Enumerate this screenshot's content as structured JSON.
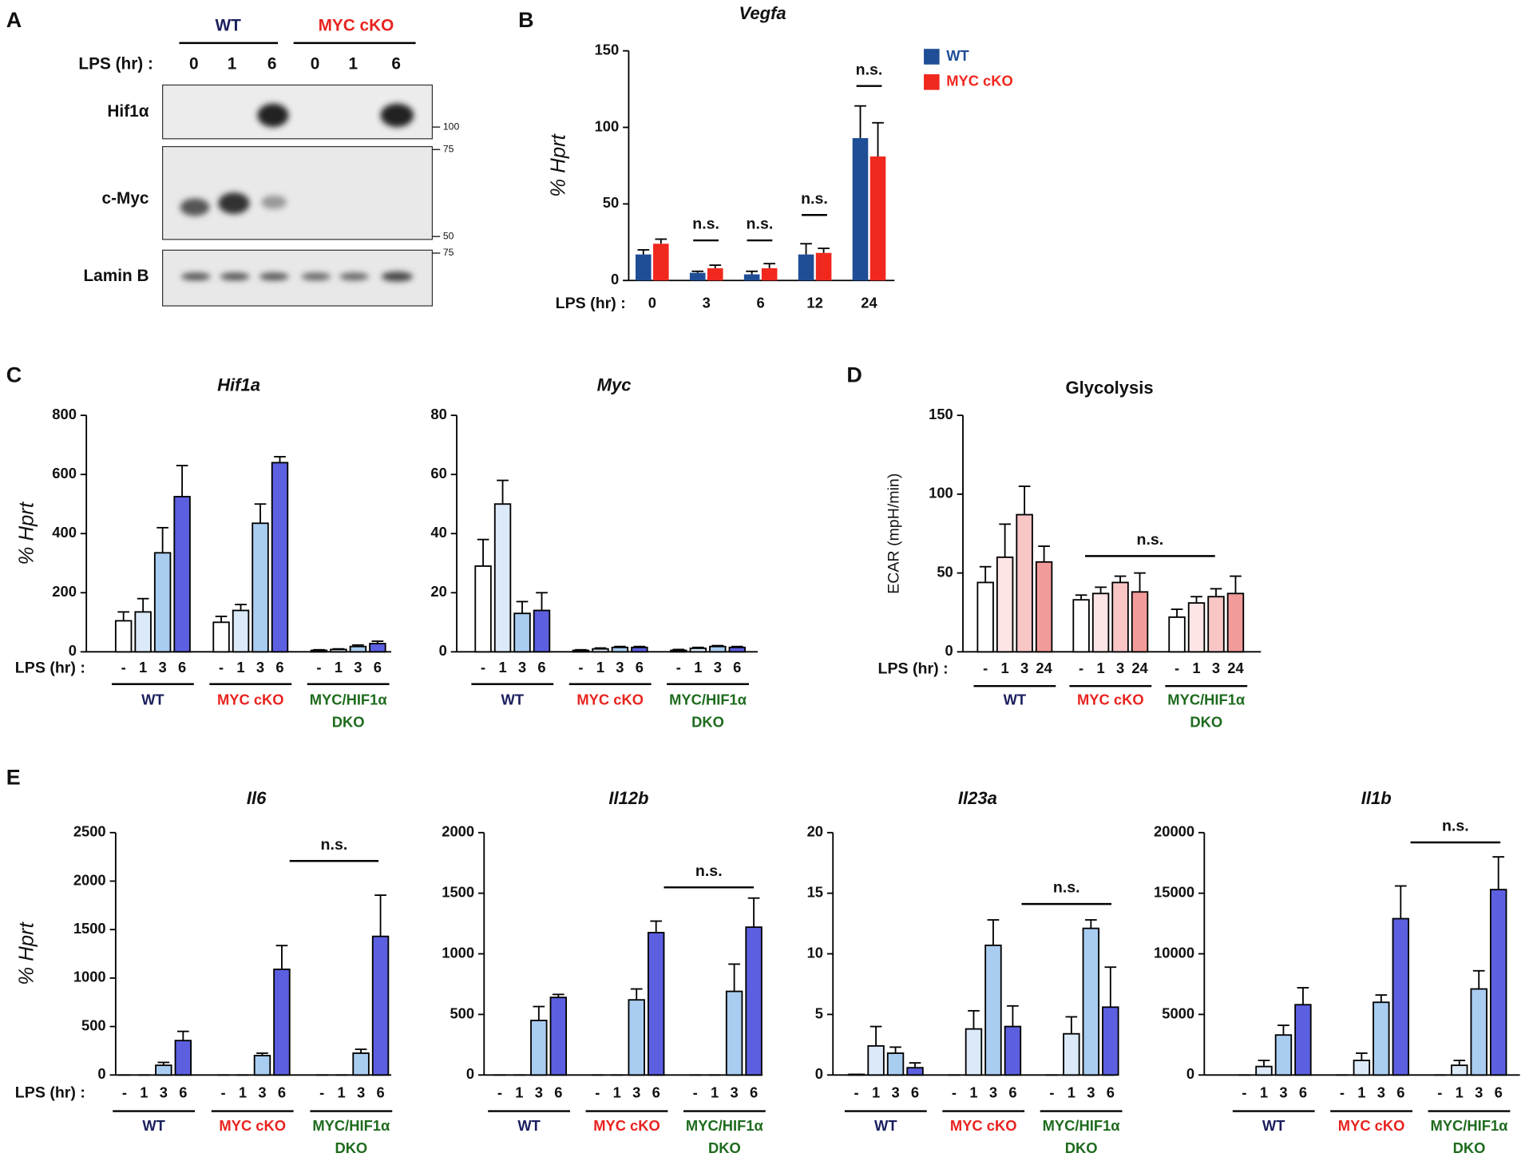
{
  "panels": [
    "A",
    "B",
    "C",
    "D",
    "E"
  ],
  "blot": {
    "groups": [
      "WT",
      "MYC cKO"
    ],
    "lps_label": "LPS (hr) :",
    "lanes": [
      0,
      1,
      6,
      0,
      1,
      6
    ],
    "rows": [
      "Hif1α",
      "c-Myc",
      "Lamin B"
    ],
    "markers": [
      100,
      75,
      50,
      75
    ]
  },
  "chart_data": [
    {
      "type": "bar",
      "title": "Vegfa",
      "title_italic": true,
      "ylabel": "% Hprt",
      "xlabel": "LPS (hr) :",
      "categories": [
        "0",
        "3",
        "6",
        "12",
        "24"
      ],
      "series": [
        {
          "name": "WT",
          "color": "#1f4e96",
          "values": [
            17,
            5,
            4,
            17,
            93
          ],
          "errors": [
            3,
            1,
            2,
            7,
            21
          ]
        },
        {
          "name": "MYC cKO",
          "color": "#f0281e",
          "values": [
            24,
            8,
            8,
            18,
            81
          ],
          "errors": [
            3,
            2,
            3,
            3,
            22
          ]
        }
      ],
      "ylim": [
        0,
        150
      ],
      "yticks": [
        0,
        50,
        100,
        150
      ],
      "legend": "right",
      "annotations": [
        "n.s.",
        "n.s.",
        "n.s.",
        "n.s."
      ]
    },
    {
      "type": "bar",
      "title": "Hif1a",
      "title_italic": true,
      "ylabel": "% Hprt",
      "xlabel": "LPS (hr) :",
      "categories": [
        "-",
        "1",
        "3",
        "6"
      ],
      "bar_colors": [
        "#ffffff",
        "#dbe9f8",
        "#a9cdf0",
        "#5c60e0"
      ],
      "series": [
        {
          "name": "WT",
          "color": "#1b1f5e",
          "values": [
            105,
            135,
            335,
            525
          ],
          "errors": [
            30,
            45,
            85,
            105
          ]
        },
        {
          "name": "MYC cKO",
          "color": "#e8231f",
          "values": [
            100,
            140,
            435,
            640
          ],
          "errors": [
            20,
            20,
            65,
            20
          ]
        },
        {
          "name": [
            "MYC/HIF1α",
            "DKO"
          ],
          "color": "#1e6b1e",
          "values": [
            5,
            8,
            18,
            28
          ],
          "errors": [
            2,
            2,
            5,
            8
          ]
        }
      ],
      "ylim": [
        0,
        800
      ],
      "yticks": [
        0,
        200,
        400,
        600,
        800
      ]
    },
    {
      "type": "bar",
      "title": "Myc",
      "title_italic": true,
      "categories": [
        "-",
        "1",
        "3",
        "6"
      ],
      "bar_colors": [
        "#ffffff",
        "#dbe9f8",
        "#a9cdf0",
        "#5c60e0"
      ],
      "series": [
        {
          "name": "WT",
          "color": "#1b1f5e",
          "values": [
            29,
            50,
            13,
            14
          ],
          "errors": [
            9,
            8,
            4,
            6
          ]
        },
        {
          "name": "MYC cKO",
          "color": "#e8231f",
          "values": [
            0.5,
            1,
            1.5,
            1.5
          ],
          "errors": [
            0.2,
            0.3,
            0.3,
            0.3
          ]
        },
        {
          "name": [
            "MYC/HIF1α",
            "DKO"
          ],
          "color": "#1e6b1e",
          "values": [
            0.5,
            1.2,
            1.8,
            1.5
          ],
          "errors": [
            0.3,
            0.3,
            0.3,
            0.3
          ]
        }
      ],
      "ylim": [
        0,
        80
      ],
      "yticks": [
        0,
        20,
        40,
        60,
        80
      ]
    },
    {
      "type": "bar",
      "title": "Glycolysis",
      "title_italic": false,
      "ylabel": "ECAR (mpH/min)",
      "xlabel": "LPS (hr) :",
      "categories": [
        "-",
        "1",
        "3",
        "24"
      ],
      "bar_colors": [
        "#ffffff",
        "#fde5e5",
        "#f9c6c6",
        "#f29b9b"
      ],
      "series": [
        {
          "name": "WT",
          "color": "#1b1f5e",
          "values": [
            44,
            60,
            87,
            57
          ],
          "errors": [
            10,
            21,
            18,
            10
          ]
        },
        {
          "name": "MYC cKO",
          "color": "#e8231f",
          "values": [
            33,
            37,
            44,
            38
          ],
          "errors": [
            3,
            4,
            4,
            12
          ]
        },
        {
          "name": [
            "MYC/HIF1α",
            "DKO"
          ],
          "color": "#1e6b1e",
          "values": [
            22,
            31,
            35,
            37
          ],
          "errors": [
            5,
            4,
            5,
            11
          ]
        }
      ],
      "ylim": [
        0,
        150
      ],
      "yticks": [
        0,
        50,
        100,
        150
      ],
      "annotations": [
        "n.s."
      ]
    },
    {
      "type": "bar",
      "title": "Il6",
      "title_italic": true,
      "ylabel": "% Hprt",
      "xlabel": "LPS (hr) :",
      "categories": [
        "-",
        "1",
        "3",
        "6"
      ],
      "bar_colors": [
        "#ffffff",
        "#dbe9f8",
        "#a9cdf0",
        "#5c60e0"
      ],
      "series": [
        {
          "name": "WT",
          "color": "#1b1f5e",
          "values": [
            0,
            0,
            100,
            355
          ],
          "errors": [
            0,
            0,
            30,
            95
          ]
        },
        {
          "name": "MYC cKO",
          "color": "#e8231f",
          "values": [
            0,
            0,
            200,
            1090
          ],
          "errors": [
            0,
            0,
            25,
            245
          ]
        },
        {
          "name": [
            "MYC/HIF1α",
            "DKO"
          ],
          "color": "#1e6b1e",
          "values": [
            0,
            0,
            225,
            1430
          ],
          "errors": [
            0,
            0,
            40,
            425
          ]
        }
      ],
      "ylim": [
        0,
        2500
      ],
      "yticks": [
        0,
        500,
        1000,
        1500,
        2000,
        2500
      ],
      "annotations": [
        "n.s."
      ]
    },
    {
      "type": "bar",
      "title": "Il12b",
      "title_italic": true,
      "categories": [
        "-",
        "1",
        "3",
        "6"
      ],
      "bar_colors": [
        "#ffffff",
        "#dbe9f8",
        "#a9cdf0",
        "#5c60e0"
      ],
      "series": [
        {
          "name": "WT",
          "color": "#1b1f5e",
          "values": [
            0,
            0,
            450,
            640
          ],
          "errors": [
            0,
            0,
            115,
            25
          ]
        },
        {
          "name": "MYC cKO",
          "color": "#e8231f",
          "values": [
            0,
            0,
            620,
            1175
          ],
          "errors": [
            0,
            0,
            90,
            95
          ]
        },
        {
          "name": [
            "MYC/HIF1α",
            "DKO"
          ],
          "color": "#1e6b1e",
          "values": [
            0,
            0,
            690,
            1220
          ],
          "errors": [
            0,
            0,
            225,
            240
          ]
        }
      ],
      "ylim": [
        0,
        2000
      ],
      "yticks": [
        0,
        500,
        1000,
        1500,
        2000
      ],
      "annotations": [
        "n.s."
      ]
    },
    {
      "type": "bar",
      "title": "Il23a",
      "title_italic": true,
      "categories": [
        "-",
        "1",
        "3",
        "6"
      ],
      "bar_colors": [
        "#ffffff",
        "#dbe9f8",
        "#a9cdf0",
        "#5c60e0"
      ],
      "series": [
        {
          "name": "WT",
          "color": "#1b1f5e",
          "values": [
            0.05,
            2.4,
            1.8,
            0.6
          ],
          "errors": [
            0,
            1.6,
            0.5,
            0.4
          ]
        },
        {
          "name": "MYC cKO",
          "color": "#e8231f",
          "values": [
            0,
            3.8,
            10.7,
            4
          ],
          "errors": [
            0,
            1.5,
            2.1,
            1.7
          ]
        },
        {
          "name": [
            "MYC/HIF1α",
            "DKO"
          ],
          "color": "#1e6b1e",
          "values": [
            0,
            3.4,
            12.1,
            5.6
          ],
          "errors": [
            0,
            1.4,
            0.7,
            3.3
          ]
        }
      ],
      "ylim": [
        0,
        20
      ],
      "yticks": [
        0,
        5,
        10,
        15,
        20
      ],
      "annotations": [
        "n.s."
      ]
    },
    {
      "type": "bar",
      "title": "Il1b",
      "title_italic": true,
      "categories": [
        "-",
        "1",
        "3",
        "6"
      ],
      "bar_colors": [
        "#ffffff",
        "#dbe9f8",
        "#a9cdf0",
        "#5c60e0"
      ],
      "series": [
        {
          "name": "WT",
          "color": "#1b1f5e",
          "values": [
            0,
            700,
            3300,
            5800
          ],
          "errors": [
            0,
            500,
            800,
            1400
          ]
        },
        {
          "name": "MYC cKO",
          "color": "#e8231f",
          "values": [
            0,
            1200,
            6000,
            12900
          ],
          "errors": [
            0,
            600,
            600,
            2700
          ]
        },
        {
          "name": [
            "MYC/HIF1α",
            "DKO"
          ],
          "color": "#1e6b1e",
          "values": [
            0,
            800,
            7100,
            15300
          ],
          "errors": [
            0,
            400,
            1500,
            2700
          ]
        }
      ],
      "ylim": [
        0,
        20000
      ],
      "yticks": [
        0,
        5000,
        10000,
        15000,
        20000
      ],
      "annotations": [
        "n.s."
      ]
    }
  ]
}
